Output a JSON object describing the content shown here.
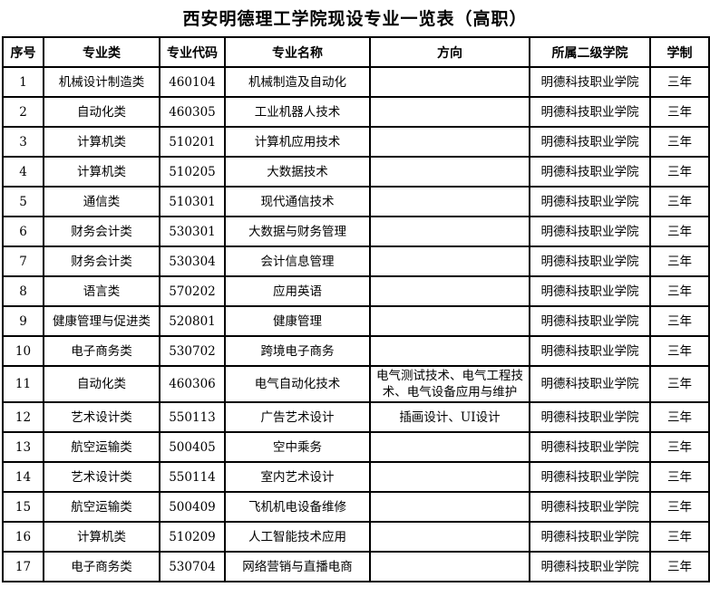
{
  "title": "西安明德理工学院现设专业一览表（高职）",
  "table": {
    "headers": [
      "序号",
      "专业类",
      "专业代码",
      "专业名称",
      "方向",
      "所属二级学院",
      "学制"
    ],
    "rows": [
      [
        "1",
        "机械设计制造类",
        "460104",
        "机械制造及自动化",
        "",
        "明德科技职业学院",
        "三年"
      ],
      [
        "2",
        "自动化类",
        "460305",
        "工业机器人技术",
        "",
        "明德科技职业学院",
        "三年"
      ],
      [
        "3",
        "计算机类",
        "510201",
        "计算机应用技术",
        "",
        "明德科技职业学院",
        "三年"
      ],
      [
        "4",
        "计算机类",
        "510205",
        "大数据技术",
        "",
        "明德科技职业学院",
        "三年"
      ],
      [
        "5",
        "通信类",
        "510301",
        "现代通信技术",
        "",
        "明德科技职业学院",
        "三年"
      ],
      [
        "6",
        "财务会计类",
        "530301",
        "大数据与财务管理",
        "",
        "明德科技职业学院",
        "三年"
      ],
      [
        "7",
        "财务会计类",
        "530304",
        "会计信息管理",
        "",
        "明德科技职业学院",
        "三年"
      ],
      [
        "8",
        "语言类",
        "570202",
        "应用英语",
        "",
        "明德科技职业学院",
        "三年"
      ],
      [
        "9",
        "健康管理与促进类",
        "520801",
        "健康管理",
        "",
        "明德科技职业学院",
        "三年"
      ],
      [
        "10",
        "电子商务类",
        "530702",
        "跨境电子商务",
        "",
        "明德科技职业学院",
        "三年"
      ],
      [
        "11",
        "自动化类",
        "460306",
        "电气自动化技术",
        "电气测试技术、电气工程技术、电气设备应用与维护",
        "明德科技职业学院",
        "三年"
      ],
      [
        "12",
        "艺术设计类",
        "550113",
        "广告艺术设计",
        "插画设计、UI设计",
        "明德科技职业学院",
        "三年"
      ],
      [
        "13",
        "航空运输类",
        "500405",
        "空中乘务",
        "",
        "明德科技职业学院",
        "三年"
      ],
      [
        "14",
        "艺术设计类",
        "550114",
        "室内艺术设计",
        "",
        "明德科技职业学院",
        "三年"
      ],
      [
        "15",
        "航空运输类",
        "500409",
        "飞机机电设备维修",
        "",
        "明德科技职业学院",
        "三年"
      ],
      [
        "16",
        "计算机类",
        "510209",
        "人工智能技术应用",
        "",
        "明德科技职业学院",
        "三年"
      ],
      [
        "17",
        "电子商务类",
        "530704",
        "网络营销与直播电商",
        "",
        "明德科技职业学院",
        "三年"
      ]
    ]
  }
}
